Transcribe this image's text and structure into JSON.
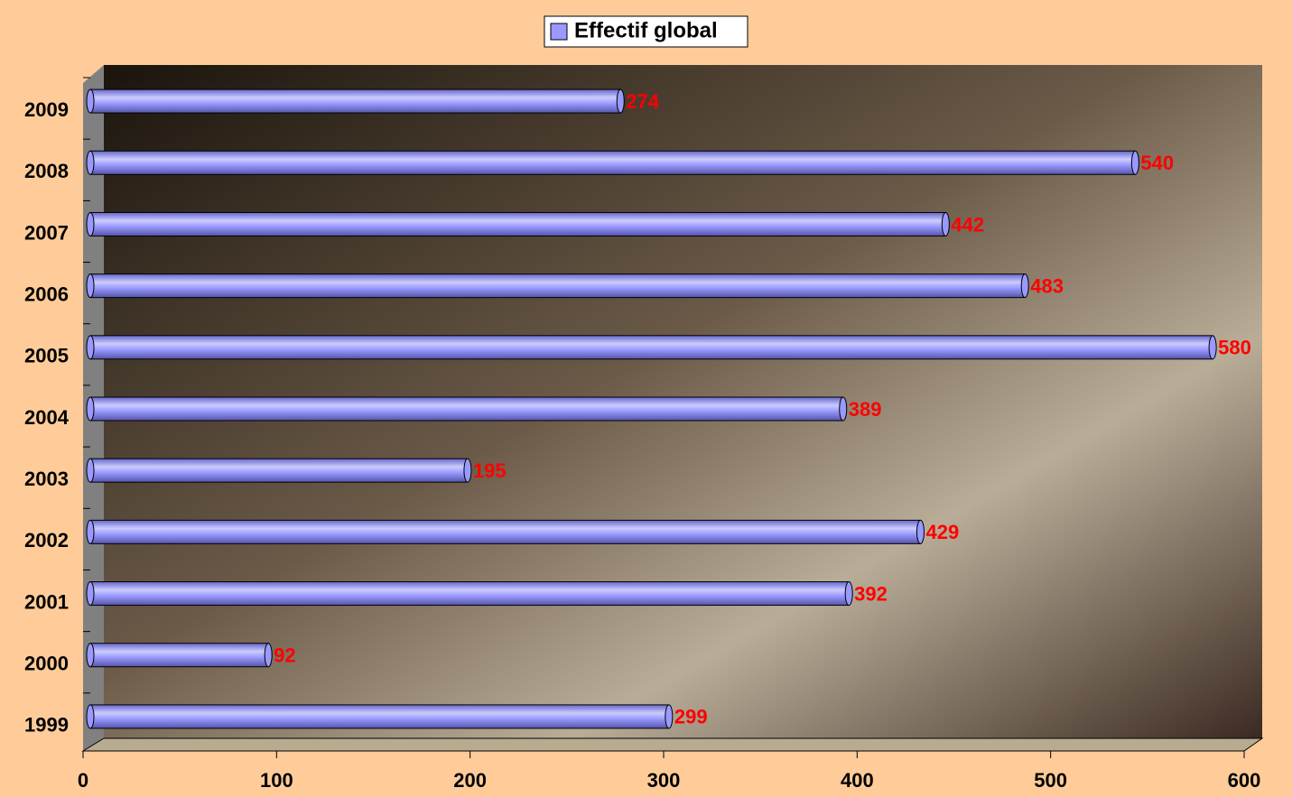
{
  "chart_data": {
    "type": "bar",
    "orientation": "horizontal",
    "legend": "top",
    "categories": [
      "2009",
      "2008",
      "2007",
      "2006",
      "2005",
      "2004",
      "2003",
      "2002",
      "2001",
      "2000",
      "1999"
    ],
    "series": [
      {
        "name": "Effectif global",
        "color": "#9999ff",
        "values": [
          274,
          540,
          442,
          483,
          580,
          389,
          195,
          429,
          392,
          92,
          299
        ]
      }
    ],
    "label_color": "#ff0000",
    "xlim": [
      0,
      600
    ],
    "xticks": [
      0,
      100,
      200,
      300,
      400,
      500,
      600
    ]
  }
}
